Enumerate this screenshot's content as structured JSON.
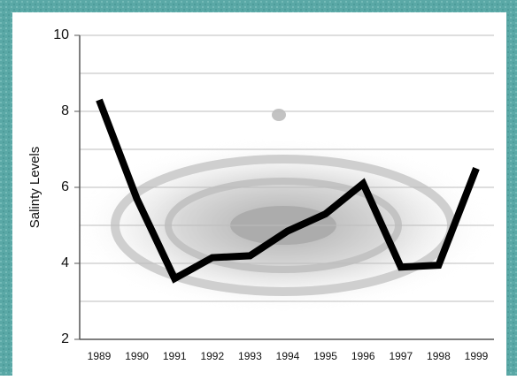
{
  "chart_data": {
    "type": "line",
    "y_label": "Salinty Levels",
    "categories": [
      "1989",
      "1990",
      "1991",
      "1992",
      "1993",
      "1994",
      "1995",
      "1996",
      "1997",
      "1998",
      "1999"
    ],
    "values": [
      8.3,
      5.7,
      3.6,
      4.15,
      4.2,
      4.85,
      5.3,
      6.1,
      3.9,
      3.95,
      6.5
    ],
    "color": "#000000",
    "ylim": [
      2,
      10
    ],
    "yticks": [
      2,
      4,
      6,
      8,
      10
    ],
    "yminor": [
      3,
      5,
      7,
      9
    ],
    "grid": true
  }
}
